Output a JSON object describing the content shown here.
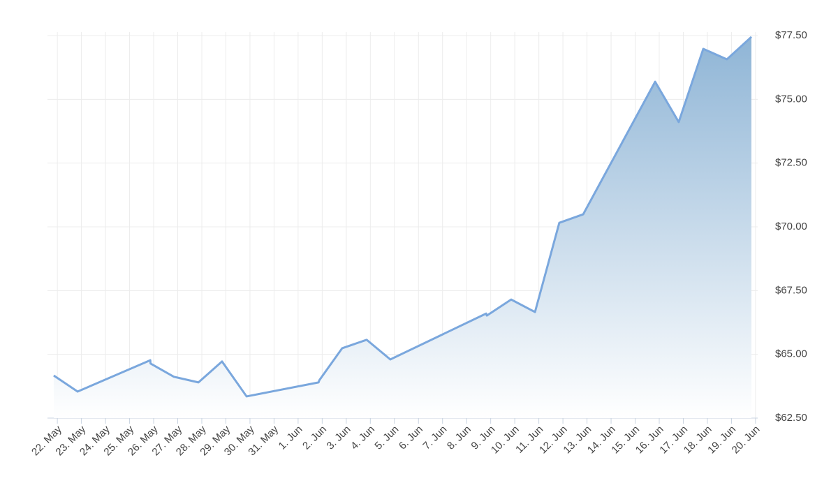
{
  "chart_data": {
    "type": "area",
    "x": [
      -0.15,
      0.84,
      3.86,
      3.87,
      4.84,
      5.86,
      6.84,
      7.86,
      10.85,
      10.88,
      11.83,
      12.85,
      13.83,
      17.81,
      17.84,
      18.85,
      19.84,
      20.85,
      21.84,
      24.83,
      25.81,
      26.83,
      27.81,
      28.83
    ],
    "values": [
      64.17,
      63.54,
      64.77,
      64.64,
      64.12,
      63.9,
      64.72,
      63.35,
      63.9,
      63.98,
      65.24,
      65.57,
      64.8,
      66.6,
      66.52,
      67.15,
      66.66,
      70.16,
      70.49,
      75.69,
      74.11,
      76.98,
      76.57,
      77.45
    ],
    "color": "#7aa7dd",
    "fill_top": "#8fb5d6",
    "fill_bottom": "#ffffff",
    "xlim": [
      -0.41,
      29.09
    ],
    "xticks": [
      {
        "value": 0,
        "label": "22. May"
      },
      {
        "value": 1,
        "label": "23. May"
      },
      {
        "value": 2,
        "label": "24. May"
      },
      {
        "value": 3,
        "label": "25. May"
      },
      {
        "value": 4,
        "label": "26. May"
      },
      {
        "value": 5,
        "label": "27. May"
      },
      {
        "value": 6,
        "label": "28. May"
      },
      {
        "value": 7,
        "label": "29. May"
      },
      {
        "value": 8,
        "label": "30. May"
      },
      {
        "value": 9,
        "label": "31. May"
      },
      {
        "value": 10,
        "label": "1. Jun"
      },
      {
        "value": 11,
        "label": "2. Jun"
      },
      {
        "value": 12,
        "label": "3. Jun"
      },
      {
        "value": 13,
        "label": "4. Jun"
      },
      {
        "value": 14,
        "label": "5. Jun"
      },
      {
        "value": 15,
        "label": "6. Jun"
      },
      {
        "value": 16,
        "label": "7. Jun"
      },
      {
        "value": 17,
        "label": "8. Jun"
      },
      {
        "value": 18,
        "label": "9. Jun"
      },
      {
        "value": 19,
        "label": "10. Jun"
      },
      {
        "value": 20,
        "label": "11. Jun"
      },
      {
        "value": 21,
        "label": "12. Jun"
      },
      {
        "value": 22,
        "label": "13. Jun"
      },
      {
        "value": 23,
        "label": "14. Jun"
      },
      {
        "value": 24,
        "label": "15. Jun"
      },
      {
        "value": 25,
        "label": "16. Jun"
      },
      {
        "value": 26,
        "label": "17. Jun"
      },
      {
        "value": 27,
        "label": "18. Jun"
      },
      {
        "value": 28,
        "label": "19. Jun"
      },
      {
        "value": 29,
        "label": "20. Jun"
      }
    ],
    "ylim": [
      62.5,
      77.5
    ],
    "yticks": [
      {
        "value": 62.5,
        "label": "$62.50"
      },
      {
        "value": 65,
        "label": "$65.00"
      },
      {
        "value": 67.5,
        "label": "$67.50"
      },
      {
        "value": 70,
        "label": "$70.00"
      },
      {
        "value": 72.5,
        "label": "$72.50"
      },
      {
        "value": 75,
        "label": "$75.00"
      },
      {
        "value": 77.5,
        "label": "$77.50"
      }
    ],
    "grid": true
  }
}
